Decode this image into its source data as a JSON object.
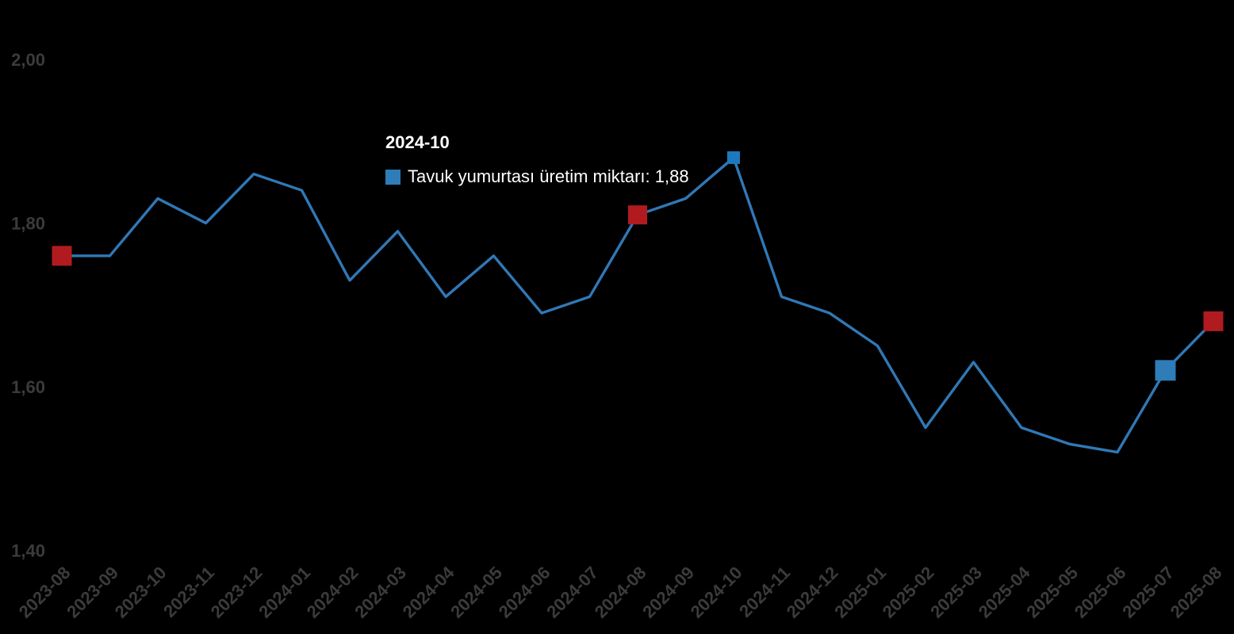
{
  "tooltip": {
    "title": "2024-10",
    "series_label": "Tavuk yumurtası üretim miktarı",
    "value": "1,88",
    "text": "Tavuk yumurtası üretim miktarı: 1,88",
    "swatch_color": "#2e7cb8"
  },
  "chart_data": {
    "type": "line",
    "title": "",
    "xlabel": "",
    "ylabel": "",
    "grid": false,
    "legend_position": "none",
    "x": [
      "2023-08",
      "2023-09",
      "2023-10",
      "2023-11",
      "2023-12",
      "2024-01",
      "2024-02",
      "2024-03",
      "2024-04",
      "2024-05",
      "2024-06",
      "2024-07",
      "2024-08",
      "2024-09",
      "2024-10",
      "2024-11",
      "2024-12",
      "2025-01",
      "2025-02",
      "2025-03",
      "2025-04",
      "2025-05",
      "2025-06",
      "2025-07",
      "2025-08"
    ],
    "series": [
      {
        "name": "Tavuk yumurtası üretim miktarı",
        "values": [
          1.76,
          1.76,
          1.83,
          1.8,
          1.86,
          1.84,
          1.73,
          1.79,
          1.71,
          1.76,
          1.69,
          1.71,
          1.81,
          1.83,
          1.88,
          1.71,
          1.69,
          1.65,
          1.55,
          1.63,
          1.55,
          1.53,
          1.52,
          1.62,
          1.68
        ]
      }
    ],
    "ylim": [
      1.4,
      2.0
    ],
    "ytick_values": [
      1.4,
      1.6,
      1.8,
      2.0
    ],
    "ytick_labels": [
      "1,40",
      "1,60",
      "1,80",
      "2,00"
    ],
    "line_color": "#3078b6",
    "axis_label_color": "#3b3b3b",
    "highlight": {
      "x": "2024-10",
      "value_label": "1,88"
    },
    "markers": [
      {
        "x": "2023-08",
        "color": "#b11b20",
        "size": 25
      },
      {
        "x": "2024-08",
        "color": "#b11b20",
        "size": 24
      },
      {
        "x": "2024-10",
        "color": "#1d79bd",
        "size": 16
      },
      {
        "x": "2025-07",
        "color": "#2e7cb8",
        "size": 26
      },
      {
        "x": "2025-08",
        "color": "#b11b20",
        "size": 25
      }
    ]
  }
}
